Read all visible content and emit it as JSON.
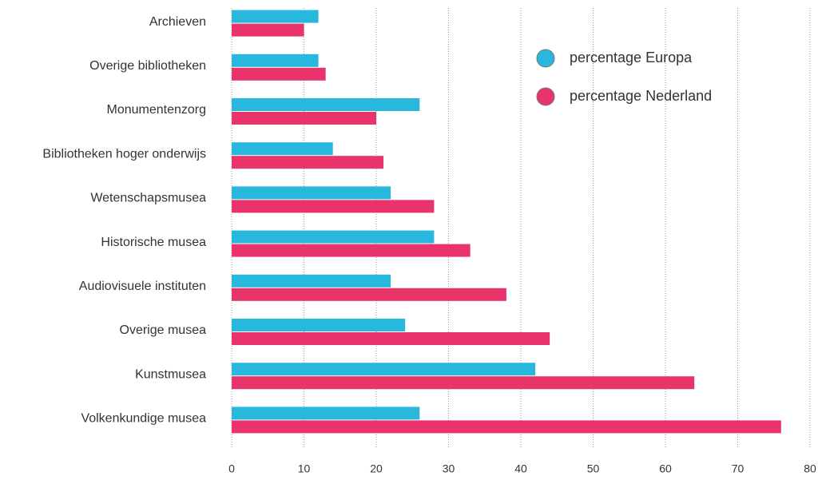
{
  "chart_data": {
    "type": "bar",
    "orientation": "horizontal",
    "categories": [
      "Archieven",
      "Overige bibliotheken",
      "Monumentenzorg",
      "Bibliotheken hoger onderwijs",
      "Wetenschapsmusea",
      "Historische musea",
      "Audiovisuele instituten",
      "Overige musea",
      "Kunstmusea",
      "Volkenkundige musea"
    ],
    "series": [
      {
        "name": "percentage Europa",
        "color": "#29b8dd",
        "values": [
          12,
          12,
          26,
          14,
          22,
          28,
          22,
          24,
          42,
          26
        ]
      },
      {
        "name": "percentage Nederland",
        "color": "#e8336b",
        "values": [
          10,
          13,
          20,
          21,
          28,
          33,
          38,
          44,
          64,
          76
        ]
      }
    ],
    "xlim": [
      0,
      80
    ],
    "xticks": [
      0,
      10,
      20,
      30,
      40,
      50,
      60,
      70,
      80
    ],
    "grid": true,
    "legend": "upper right"
  }
}
